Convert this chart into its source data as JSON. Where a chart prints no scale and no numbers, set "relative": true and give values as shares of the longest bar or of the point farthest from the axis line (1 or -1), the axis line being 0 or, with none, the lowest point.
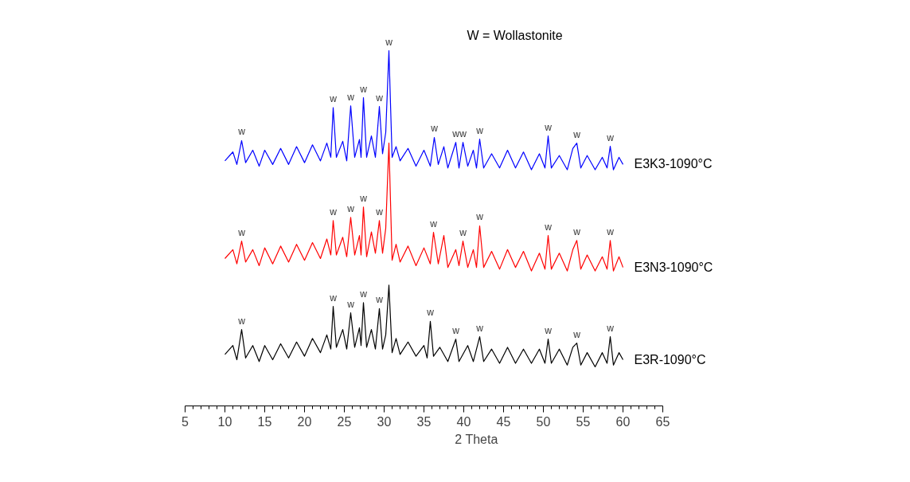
{
  "chart_data": {
    "type": "line",
    "relative": true,
    "xlabel": "2 Theta",
    "xlim": [
      5,
      65
    ],
    "xticks": [
      5,
      10,
      15,
      20,
      25,
      30,
      35,
      40,
      45,
      50,
      55,
      60,
      65
    ],
    "grid": false,
    "legend": false,
    "marker": "none",
    "line_style": "solid",
    "series": [
      {
        "name": "E3K3-1090°C",
        "color": "#0000ff",
        "x": [
          10,
          11,
          11.5,
          12.1,
          12.6,
          13.5,
          14.3,
          15,
          16,
          17,
          18,
          19,
          20,
          21,
          22,
          22.8,
          23.3,
          23.6,
          24,
          24.8,
          25.3,
          25.8,
          26.3,
          26.9,
          27.1,
          27.4,
          27.8,
          28.4,
          28.9,
          29.4,
          29.8,
          30.2,
          30.6,
          31.0,
          31.5,
          32,
          33,
          34,
          35,
          35.8,
          36.3,
          36.8,
          37.5,
          38,
          39.0,
          39.4,
          39.9,
          40.5,
          41.2,
          41.6,
          42.0,
          42.5,
          43.5,
          44.5,
          45.5,
          46.5,
          47.5,
          48.5,
          49.5,
          50.2,
          50.6,
          51.0,
          52,
          53,
          53.7,
          54.2,
          54.7,
          55.5,
          56.5,
          57.4,
          58.0,
          58.4,
          58.8,
          59.5,
          60
        ],
        "values": [
          0.69,
          0.715,
          0.68,
          0.747,
          0.685,
          0.72,
          0.675,
          0.72,
          0.68,
          0.725,
          0.68,
          0.73,
          0.685,
          0.735,
          0.69,
          0.74,
          0.7,
          0.84,
          0.7,
          0.745,
          0.69,
          0.845,
          0.7,
          0.75,
          0.7,
          0.868,
          0.7,
          0.76,
          0.7,
          0.843,
          0.71,
          0.77,
          1.0,
          0.7,
          0.73,
          0.69,
          0.725,
          0.675,
          0.72,
          0.675,
          0.756,
          0.68,
          0.73,
          0.67,
          0.742,
          0.67,
          0.742,
          0.675,
          0.72,
          0.67,
          0.751,
          0.67,
          0.71,
          0.67,
          0.72,
          0.67,
          0.715,
          0.665,
          0.71,
          0.67,
          0.76,
          0.67,
          0.705,
          0.665,
          0.725,
          0.74,
          0.67,
          0.705,
          0.665,
          0.7,
          0.67,
          0.731,
          0.665,
          0.7,
          0.68
        ]
      },
      {
        "name": "E3N3-1090°C",
        "color": "#ff0000",
        "x": [
          10,
          11,
          11.5,
          12.1,
          12.6,
          13.5,
          14.3,
          15,
          16,
          17,
          18,
          19,
          20,
          21,
          22,
          22.8,
          23.3,
          23.6,
          24,
          24.8,
          25.3,
          25.8,
          26.3,
          26.9,
          27.1,
          27.4,
          27.8,
          28.4,
          28.9,
          29.4,
          29.8,
          30.2,
          30.6,
          31.0,
          31.5,
          32,
          33,
          34,
          35,
          35.8,
          36.2,
          36.8,
          37.5,
          38,
          39.0,
          39.4,
          39.9,
          40.5,
          41.2,
          41.6,
          42.0,
          42.5,
          43.5,
          44.5,
          45.5,
          46.5,
          47.5,
          48.5,
          49.5,
          50.2,
          50.6,
          51.0,
          52,
          53,
          53.7,
          54.2,
          54.7,
          55.5,
          56.5,
          57.4,
          58.0,
          58.4,
          58.8,
          59.5,
          60
        ],
        "values": [
          0.415,
          0.44,
          0.4,
          0.464,
          0.405,
          0.44,
          0.395,
          0.445,
          0.4,
          0.45,
          0.405,
          0.455,
          0.41,
          0.46,
          0.415,
          0.47,
          0.425,
          0.522,
          0.425,
          0.475,
          0.42,
          0.531,
          0.425,
          0.48,
          0.425,
          0.56,
          0.42,
          0.49,
          0.43,
          0.522,
          0.43,
          0.5,
          0.74,
          0.41,
          0.455,
          0.405,
          0.45,
          0.395,
          0.445,
          0.4,
          0.489,
          0.4,
          0.48,
          0.39,
          0.44,
          0.395,
          0.464,
          0.39,
          0.44,
          0.39,
          0.507,
          0.39,
          0.435,
          0.385,
          0.44,
          0.39,
          0.435,
          0.38,
          0.43,
          0.385,
          0.48,
          0.385,
          0.43,
          0.38,
          0.44,
          0.466,
          0.385,
          0.425,
          0.38,
          0.42,
          0.385,
          0.466,
          0.38,
          0.42,
          0.39
        ]
      },
      {
        "name": "E3R-1090°C",
        "color": "#000000",
        "x": [
          10,
          11,
          11.5,
          12.1,
          12.6,
          13.5,
          14.3,
          15,
          16,
          17,
          18,
          19,
          20,
          21,
          22,
          22.8,
          23.3,
          23.6,
          24,
          24.8,
          25.3,
          25.8,
          26.3,
          26.9,
          27.1,
          27.4,
          27.8,
          28.4,
          28.9,
          29.4,
          29.8,
          30.2,
          30.6,
          31.0,
          31.5,
          32,
          33,
          34,
          35,
          35.4,
          35.8,
          36.2,
          37,
          38,
          39.0,
          39.4,
          40.5,
          41.2,
          42.0,
          42.5,
          43.5,
          44.5,
          45.5,
          46.5,
          47.5,
          48.5,
          49.5,
          50.2,
          50.6,
          51.0,
          52,
          53,
          53.7,
          54.2,
          54.7,
          55.5,
          56.5,
          57.4,
          58.0,
          58.4,
          58.8,
          59.5,
          60
        ],
        "values": [
          0.145,
          0.17,
          0.13,
          0.215,
          0.135,
          0.17,
          0.125,
          0.17,
          0.13,
          0.175,
          0.135,
          0.18,
          0.14,
          0.19,
          0.15,
          0.2,
          0.16,
          0.28,
          0.165,
          0.215,
          0.16,
          0.262,
          0.165,
          0.22,
          0.17,
          0.291,
          0.165,
          0.215,
          0.16,
          0.274,
          0.16,
          0.2,
          0.34,
          0.15,
          0.19,
          0.145,
          0.18,
          0.14,
          0.17,
          0.135,
          0.238,
          0.14,
          0.165,
          0.125,
          0.188,
          0.125,
          0.17,
          0.125,
          0.195,
          0.125,
          0.16,
          0.12,
          0.165,
          0.12,
          0.16,
          0.12,
          0.16,
          0.12,
          0.188,
          0.12,
          0.16,
          0.115,
          0.165,
          0.177,
          0.115,
          0.15,
          0.11,
          0.15,
          0.12,
          0.195,
          0.115,
          0.15,
          0.13
        ]
      }
    ],
    "annotations": [
      "W = Wollastonite",
      {
        "text": "w",
        "x": 12.1,
        "y": 0.747
      },
      {
        "text": "w",
        "x": 23.6,
        "y": 0.84
      },
      {
        "text": "w",
        "x": 25.8,
        "y": 0.845
      },
      {
        "text": "w",
        "x": 27.4,
        "y": 0.868
      },
      {
        "text": "w",
        "x": 29.4,
        "y": 0.843
      },
      {
        "text": "w",
        "x": 30.6,
        "y": 1.0
      },
      {
        "text": "w",
        "x": 36.3,
        "y": 0.756
      },
      {
        "text": "w",
        "x": 39.0,
        "y": 0.742
      },
      {
        "text": "w",
        "x": 39.9,
        "y": 0.742
      },
      {
        "text": "w",
        "x": 42.0,
        "y": 0.751
      },
      {
        "text": "w",
        "x": 50.6,
        "y": 0.76
      },
      {
        "text": "w",
        "x": 54.2,
        "y": 0.74
      },
      {
        "text": "w",
        "x": 58.4,
        "y": 0.731
      },
      {
        "text": "w",
        "x": 12.1,
        "y": 0.464
      },
      {
        "text": "w",
        "x": 23.6,
        "y": 0.522
      },
      {
        "text": "w",
        "x": 25.8,
        "y": 0.531
      },
      {
        "text": "w",
        "x": 27.4,
        "y": 0.56
      },
      {
        "text": "w",
        "x": 29.4,
        "y": 0.522
      },
      {
        "text": "w",
        "x": 36.2,
        "y": 0.489
      },
      {
        "text": "w",
        "x": 39.9,
        "y": 0.464
      },
      {
        "text": "w",
        "x": 42.0,
        "y": 0.507
      },
      {
        "text": "w",
        "x": 50.6,
        "y": 0.48
      },
      {
        "text": "w",
        "x": 54.2,
        "y": 0.466
      },
      {
        "text": "w",
        "x": 58.4,
        "y": 0.466
      },
      {
        "text": "w",
        "x": 12.1,
        "y": 0.215
      },
      {
        "text": "w",
        "x": 23.6,
        "y": 0.28
      },
      {
        "text": "w",
        "x": 25.8,
        "y": 0.262
      },
      {
        "text": "w",
        "x": 27.4,
        "y": 0.291
      },
      {
        "text": "w",
        "x": 29.4,
        "y": 0.274
      },
      {
        "text": "w",
        "x": 35.8,
        "y": 0.238
      },
      {
        "text": "w",
        "x": 39.0,
        "y": 0.188
      },
      {
        "text": "w",
        "x": 42.0,
        "y": 0.195
      },
      {
        "text": "w",
        "x": 50.6,
        "y": 0.188
      },
      {
        "text": "w",
        "x": 54.2,
        "y": 0.177
      },
      {
        "text": "w",
        "x": 58.4,
        "y": 0.195
      }
    ]
  }
}
